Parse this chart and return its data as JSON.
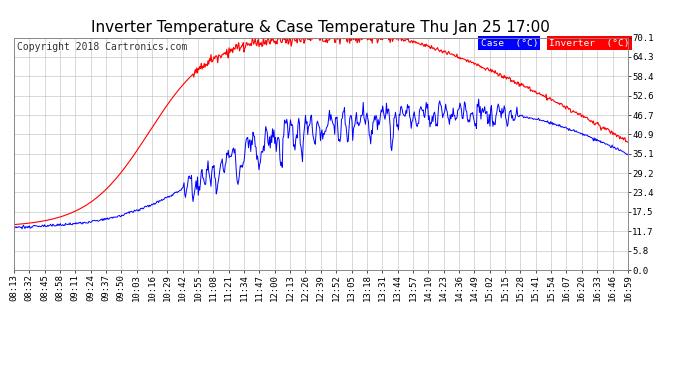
{
  "title": "Inverter Temperature & Case Temperature Thu Jan 25 17:00",
  "copyright": "Copyright 2018 Cartronics.com",
  "yticks": [
    0.0,
    5.8,
    11.7,
    17.5,
    23.4,
    29.2,
    35.1,
    40.9,
    46.7,
    52.6,
    58.4,
    64.3,
    70.1
  ],
  "xtick_labels": [
    "08:13",
    "08:32",
    "08:45",
    "08:58",
    "09:11",
    "09:24",
    "09:37",
    "09:50",
    "10:03",
    "10:16",
    "10:29",
    "10:42",
    "10:55",
    "11:08",
    "11:21",
    "11:34",
    "11:47",
    "12:00",
    "12:13",
    "12:26",
    "12:39",
    "12:52",
    "13:05",
    "13:18",
    "13:31",
    "13:44",
    "13:57",
    "14:10",
    "14:23",
    "14:36",
    "14:49",
    "15:02",
    "15:15",
    "15:28",
    "15:41",
    "15:54",
    "16:07",
    "16:20",
    "16:33",
    "16:46",
    "16:59"
  ],
  "case_color": "#0000ff",
  "inverter_color": "#ff0000",
  "background_color": "#ffffff",
  "grid_color": "#bbbbbb",
  "legend_case_bg": "#0000ff",
  "legend_inverter_bg": "#ff0000",
  "title_fontsize": 11,
  "copyright_fontsize": 7,
  "tick_fontsize": 6.5,
  "ylim": [
    0.0,
    70.1
  ],
  "n_points": 820
}
